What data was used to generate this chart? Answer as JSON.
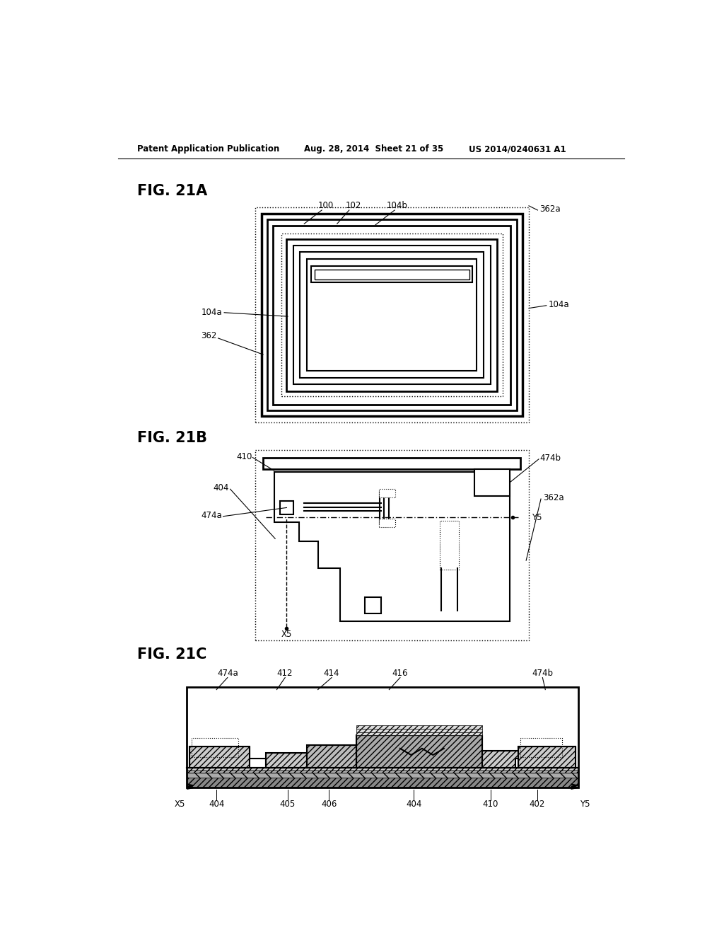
{
  "header_left": "Patent Application Publication",
  "header_mid": "Aug. 28, 2014  Sheet 21 of 35",
  "header_right": "US 2014/0240631 A1",
  "fig21a_label": "FIG. 21A",
  "fig21b_label": "FIG. 21B",
  "fig21c_label": "FIG. 21C",
  "background": "#ffffff",
  "line_color": "#000000"
}
